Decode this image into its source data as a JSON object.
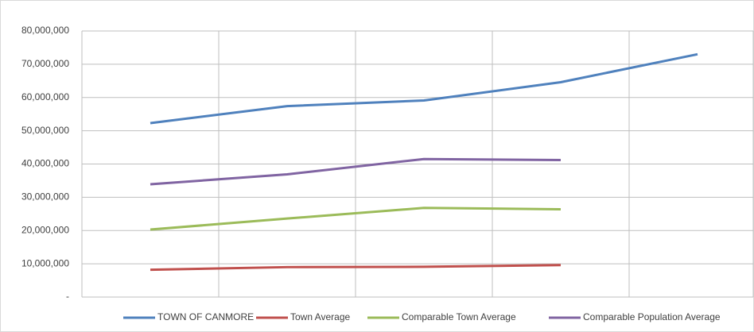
{
  "chart_data": {
    "type": "line",
    "categories": [
      null,
      null,
      null,
      null,
      null
    ],
    "series": [
      {
        "name": "TOWN OF CANMORE",
        "color": "#4f81bd",
        "values": [
          52300000,
          57400000,
          59100000,
          64600000,
          73000000
        ]
      },
      {
        "name": "Town Average",
        "color": "#c0504d",
        "values": [
          8200000,
          9000000,
          9100000,
          9600000,
          null
        ]
      },
      {
        "name": "Comparable Town Average",
        "color": "#9bbb59",
        "values": [
          20300000,
          23600000,
          26800000,
          26400000,
          null
        ]
      },
      {
        "name": "Comparable Population Average",
        "color": "#8064a2",
        "values": [
          33900000,
          36900000,
          41500000,
          41200000,
          null
        ]
      }
    ],
    "ylim": [
      0,
      80000000
    ],
    "yticks": [
      {
        "value": 0,
        "label": "-"
      },
      {
        "value": 10000000,
        "label": "10,000,000"
      },
      {
        "value": 20000000,
        "label": "20,000,000"
      },
      {
        "value": 30000000,
        "label": "30,000,000"
      },
      {
        "value": 40000000,
        "label": "40,000,000"
      },
      {
        "value": 50000000,
        "label": "50,000,000"
      },
      {
        "value": 60000000,
        "label": "60,000,000"
      },
      {
        "value": 70000000,
        "label": "70,000,000"
      },
      {
        "value": 80000000,
        "label": "80,000,000"
      }
    ],
    "grid": true,
    "legend": "bottom"
  }
}
